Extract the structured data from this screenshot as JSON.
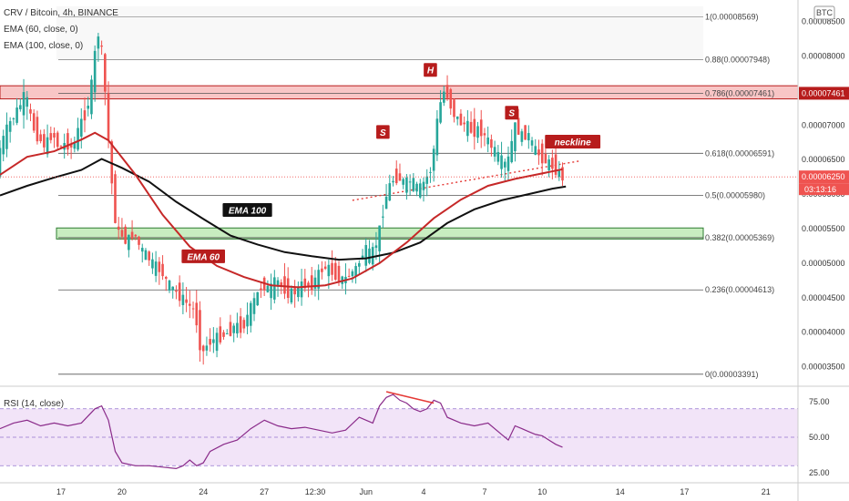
{
  "header": {
    "symbol_line": "CRV / Bitcoin, 4h, BINANCE",
    "indicators": [
      "EMA (60, close, 0)",
      "EMA (100, close, 0)"
    ],
    "rsi_title": "RSI (14, close)",
    "currency_badge": "BTC"
  },
  "colors": {
    "up": "#26a69a",
    "down": "#ef5350",
    "ema60": "#c62828",
    "ema100": "#111111",
    "fib_line": "#555555",
    "resistance_zone": "#f8c6c6",
    "support_zone": "#c8edc0",
    "rsi_line": "#8a2b8a",
    "rsi_band": "#f2e4f8"
  },
  "chart_data": {
    "type": "candlestick",
    "title": "CRV / Bitcoin, 4h, BINANCE",
    "x_ticks": [
      "17",
      "20",
      "24",
      "27",
      "12:30",
      "Jun",
      "4",
      "7",
      "10",
      "14",
      "17",
      "21"
    ],
    "y_ticks": [
      "0.00008500",
      "0.00008000",
      "0.00007500",
      "0.00007000",
      "0.00006500",
      "0.00006000",
      "0.00005500",
      "0.00005000",
      "0.00004500",
      "0.00004000",
      "0.00003500"
    ],
    "y_range": [
      3.27e-05,
      8.72e-05
    ],
    "fib_levels": [
      {
        "ratio": "1",
        "value": 8.569e-05,
        "label": "1(0.00008569)"
      },
      {
        "ratio": "0.88",
        "value": 7.948e-05,
        "label": "0.88(0.00007948)"
      },
      {
        "ratio": "0.786",
        "value": 7.461e-05,
        "label": "0.786(0.00007461)"
      },
      {
        "ratio": "0.618",
        "value": 6.591e-05,
        "label": "0.618(0.00006591)"
      },
      {
        "ratio": "0.5",
        "value": 5.98e-05,
        "label": "0.5(0.00005980)"
      },
      {
        "ratio": "0.382",
        "value": 5.369e-05,
        "label": "0.382(0.00005369)"
      },
      {
        "ratio": "0.236",
        "value": 4.613e-05,
        "label": "0.236(0.00004613)"
      },
      {
        "ratio": "0",
        "value": 3.391e-05,
        "label": "0(0.00003391)"
      }
    ],
    "resistance_zone": [
      7.38e-05,
      7.57e-05
    ],
    "support_zone": [
      5.35e-05,
      5.51e-05
    ],
    "price_badges": [
      {
        "value": 7.461e-05,
        "text": "0.00007461",
        "color": "#b71c1c"
      },
      {
        "value": 6.25e-05,
        "text": "0.00006250",
        "color": "#ef5350"
      }
    ],
    "countdown": "03:13:16",
    "annotations": [
      {
        "text": "S",
        "x_bar": 113,
        "value": 6.9e-05,
        "style": "red-box"
      },
      {
        "text": "H",
        "x_bar": 127,
        "value": 7.8e-05,
        "style": "red-box"
      },
      {
        "text": "S",
        "x_bar": 151,
        "value": 7.18e-05,
        "style": "red-box"
      },
      {
        "text": "neckline",
        "x_bar": 169,
        "value": 6.76e-05,
        "style": "red-box"
      },
      {
        "text": "EMA 100",
        "x_bar": 73,
        "value": 5.77e-05,
        "style": "black-box"
      },
      {
        "text": "EMA 60",
        "x_bar": 60,
        "value": 5.1e-05,
        "style": "red-box"
      }
    ],
    "neckline": {
      "from": [
        104,
        5.91e-05
      ],
      "to": [
        171,
        6.48e-05
      ]
    },
    "ema60": [
      [
        0,
        6.28e-05
      ],
      [
        8,
        6.54e-05
      ],
      [
        16,
        6.62e-05
      ],
      [
        24,
        6.79e-05
      ],
      [
        28,
        6.89e-05
      ],
      [
        32,
        6.78e-05
      ],
      [
        40,
        6.28e-05
      ],
      [
        48,
        5.7e-05
      ],
      [
        56,
        5.24e-05
      ],
      [
        64,
        4.96e-05
      ],
      [
        72,
        4.8e-05
      ],
      [
        80,
        4.68e-05
      ],
      [
        88,
        4.65e-05
      ],
      [
        96,
        4.68e-05
      ],
      [
        104,
        4.78e-05
      ],
      [
        112,
        5e-05
      ],
      [
        120,
        5.3e-05
      ],
      [
        128,
        5.65e-05
      ],
      [
        136,
        5.92e-05
      ],
      [
        144,
        6.12e-05
      ],
      [
        152,
        6.22e-05
      ],
      [
        160,
        6.3e-05
      ],
      [
        166,
        6.36e-05
      ]
    ],
    "ema100": [
      [
        0,
        5.98e-05
      ],
      [
        8,
        6.12e-05
      ],
      [
        16,
        6.24e-05
      ],
      [
        24,
        6.35e-05
      ],
      [
        30,
        6.51e-05
      ],
      [
        36,
        6.38e-05
      ],
      [
        44,
        6.18e-05
      ],
      [
        52,
        5.89e-05
      ],
      [
        60,
        5.64e-05
      ],
      [
        68,
        5.4e-05
      ],
      [
        76,
        5.27e-05
      ],
      [
        84,
        5.16e-05
      ],
      [
        92,
        5.1e-05
      ],
      [
        100,
        5.05e-05
      ],
      [
        108,
        5.07e-05
      ],
      [
        116,
        5.15e-05
      ],
      [
        124,
        5.3e-05
      ],
      [
        132,
        5.58e-05
      ],
      [
        140,
        5.78e-05
      ],
      [
        148,
        5.91e-05
      ],
      [
        156,
        6e-05
      ],
      [
        163,
        6.08e-05
      ],
      [
        167,
        6.11e-05
      ]
    ],
    "price": [
      [
        0,
        6.6e-05
      ],
      [
        3,
        7e-05
      ],
      [
        6,
        7.25e-05
      ],
      [
        8,
        7.45e-05
      ],
      [
        10,
        7e-05
      ],
      [
        12,
        6.8e-05
      ],
      [
        14,
        6.7e-05
      ],
      [
        16,
        6.9e-05
      ],
      [
        18,
        6.65e-05
      ],
      [
        20,
        6.75e-05
      ],
      [
        22,
        6.65e-05
      ],
      [
        24,
        7e-05
      ],
      [
        26,
        7.2e-05
      ],
      [
        28,
        7.7e-05
      ],
      [
        29,
        8.35e-05
      ],
      [
        30,
        8.3e-05
      ],
      [
        31,
        7.8e-05
      ],
      [
        32,
        7.15e-05
      ],
      [
        33,
        6.4e-05
      ],
      [
        34,
        5.9e-05
      ],
      [
        35,
        5.4e-05
      ],
      [
        36,
        5.45e-05
      ],
      [
        38,
        5.3e-05
      ],
      [
        40,
        5.45e-05
      ],
      [
        42,
        5.2e-05
      ],
      [
        44,
        5.1e-05
      ],
      [
        46,
        4.95e-05
      ],
      [
        48,
        4.9e-05
      ],
      [
        50,
        4.7e-05
      ],
      [
        52,
        4.6e-05
      ],
      [
        54,
        4.5e-05
      ],
      [
        56,
        4.4e-05
      ],
      [
        58,
        4.3e-05
      ],
      [
        59,
        4e-05
      ],
      [
        60,
        3.65e-05
      ],
      [
        61,
        3.78e-05
      ],
      [
        62,
        3.85e-05
      ],
      [
        64,
        3.9e-05
      ],
      [
        66,
        3.95e-05
      ],
      [
        68,
        4e-05
      ],
      [
        70,
        4.1e-05
      ],
      [
        72,
        4.05e-05
      ],
      [
        74,
        4.3e-05
      ],
      [
        76,
        4.5e-05
      ],
      [
        78,
        4.7e-05
      ],
      [
        80,
        4.6e-05
      ],
      [
        82,
        4.75e-05
      ],
      [
        84,
        4.65e-05
      ],
      [
        86,
        4.55e-05
      ],
      [
        88,
        4.6e-05
      ],
      [
        90,
        4.7e-05
      ],
      [
        92,
        4.65e-05
      ],
      [
        94,
        4.8e-05
      ],
      [
        96,
        4.95e-05
      ],
      [
        98,
        4.9e-05
      ],
      [
        100,
        4.8e-05
      ],
      [
        102,
        4.75e-05
      ],
      [
        104,
        4.85e-05
      ],
      [
        106,
        4.95e-05
      ],
      [
        108,
        5.2e-05
      ],
      [
        110,
        5.1e-05
      ],
      [
        112,
        5.35e-05
      ],
      [
        114,
        5.9e-05
      ],
      [
        116,
        6.2e-05
      ],
      [
        118,
        6.25e-05
      ],
      [
        120,
        6.15e-05
      ],
      [
        122,
        6.2e-05
      ],
      [
        124,
        6.05e-05
      ],
      [
        126,
        6.2e-05
      ],
      [
        128,
        6.4e-05
      ],
      [
        129,
        6.9e-05
      ],
      [
        130,
        7.2e-05
      ],
      [
        131,
        7.45e-05
      ],
      [
        132,
        7.52e-05
      ],
      [
        134,
        7.2e-05
      ],
      [
        136,
        7.05e-05
      ],
      [
        138,
        7e-05
      ],
      [
        140,
        6.9e-05
      ],
      [
        142,
        6.95e-05
      ],
      [
        144,
        6.8e-05
      ],
      [
        146,
        6.65e-05
      ],
      [
        148,
        6.5e-05
      ],
      [
        150,
        6.4e-05
      ],
      [
        151,
        6.6e-05
      ],
      [
        152,
        6.9e-05
      ],
      [
        153,
        7.05e-05
      ],
      [
        154,
        6.8e-05
      ],
      [
        156,
        6.9e-05
      ],
      [
        158,
        6.65e-05
      ],
      [
        160,
        6.55e-05
      ],
      [
        162,
        6.45e-05
      ],
      [
        164,
        6.4e-05
      ],
      [
        166,
        6.25e-05
      ]
    ],
    "rsi": {
      "title": "RSI (14, close)",
      "y_ticks": [
        "75.00",
        "50.00",
        "25.00"
      ],
      "band": [
        30,
        70
      ],
      "range": [
        18,
        82
      ],
      "values": [
        [
          0,
          56
        ],
        [
          4,
          60
        ],
        [
          8,
          62
        ],
        [
          12,
          58
        ],
        [
          16,
          60
        ],
        [
          20,
          58
        ],
        [
          24,
          60
        ],
        [
          28,
          70
        ],
        [
          30,
          72
        ],
        [
          32,
          62
        ],
        [
          34,
          40
        ],
        [
          36,
          32
        ],
        [
          40,
          30
        ],
        [
          44,
          30
        ],
        [
          48,
          29
        ],
        [
          52,
          28
        ],
        [
          54,
          30
        ],
        [
          56,
          34
        ],
        [
          58,
          30
        ],
        [
          60,
          32
        ],
        [
          62,
          40
        ],
        [
          66,
          45
        ],
        [
          70,
          48
        ],
        [
          74,
          56
        ],
        [
          78,
          62
        ],
        [
          82,
          58
        ],
        [
          86,
          56
        ],
        [
          90,
          57
        ],
        [
          94,
          55
        ],
        [
          98,
          53
        ],
        [
          102,
          55
        ],
        [
          106,
          64
        ],
        [
          110,
          60
        ],
        [
          112,
          72
        ],
        [
          114,
          78
        ],
        [
          116,
          80
        ],
        [
          118,
          76
        ],
        [
          120,
          74
        ],
        [
          122,
          70
        ],
        [
          124,
          68
        ],
        [
          126,
          70
        ],
        [
          128,
          76
        ],
        [
          130,
          74
        ],
        [
          132,
          64
        ],
        [
          136,
          60
        ],
        [
          140,
          58
        ],
        [
          144,
          60
        ],
        [
          148,
          52
        ],
        [
          150,
          48
        ],
        [
          152,
          58
        ],
        [
          154,
          56
        ],
        [
          156,
          54
        ],
        [
          158,
          52
        ],
        [
          160,
          51
        ],
        [
          162,
          48
        ],
        [
          164,
          45
        ],
        [
          166,
          43
        ]
      ],
      "divergence": {
        "from": [
          114,
          82
        ],
        "to": [
          128,
          74
        ]
      }
    }
  }
}
